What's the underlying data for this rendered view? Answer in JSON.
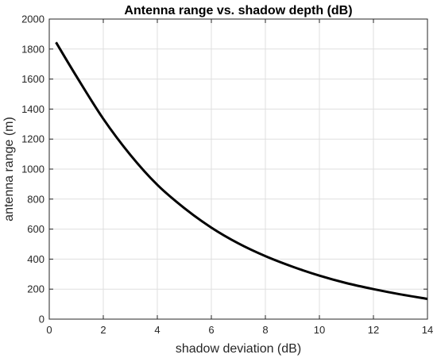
{
  "chart_data": {
    "type": "line",
    "title": "Antenna range vs. shadow depth (dB)",
    "xlabel": "shadow deviation (dB)",
    "ylabel": "antenna range (m)",
    "xlim": [
      0,
      14
    ],
    "ylim": [
      0,
      2000
    ],
    "xticks": [
      0,
      2,
      4,
      6,
      8,
      10,
      12,
      14
    ],
    "yticks": [
      0,
      200,
      400,
      600,
      800,
      1000,
      1200,
      1400,
      1600,
      1800,
      2000
    ],
    "grid": true,
    "series": [
      {
        "color": "#000000",
        "x": [
          0.25,
          1,
          2,
          3,
          4,
          5,
          6,
          7,
          8,
          9,
          10,
          11,
          12,
          13,
          14
        ],
        "y": [
          1845,
          1620,
          1335,
          1095,
          895,
          740,
          610,
          505,
          420,
          350,
          290,
          240,
          200,
          165,
          135
        ]
      }
    ]
  }
}
